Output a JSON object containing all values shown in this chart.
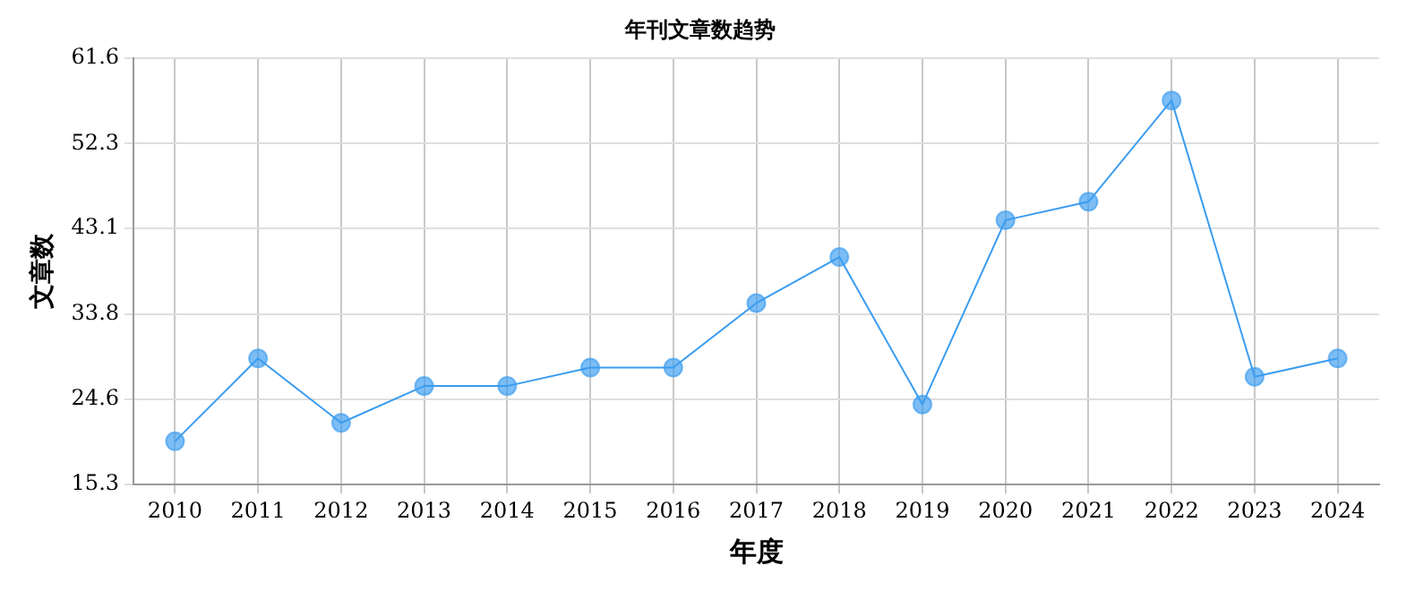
{
  "chart_data": {
    "type": "line",
    "title": "年刊文章数趋势",
    "xlabel": "年度",
    "ylabel": "文章数",
    "categories": [
      "2010",
      "2011",
      "2012",
      "2013",
      "2014",
      "2015",
      "2016",
      "2017",
      "2018",
      "2019",
      "2020",
      "2021",
      "2022",
      "2023",
      "2024"
    ],
    "series": [
      {
        "color": "#3a9cf0",
        "values": [
          20,
          29,
          22,
          26,
          26,
          28,
          28,
          35,
          40,
          24,
          44,
          46,
          57,
          27,
          29
        ]
      }
    ],
    "ylim": [
      15.3,
      61.6
    ],
    "yticks": [
      15.3,
      24.6,
      33.8,
      43.1,
      52.3,
      61.6
    ],
    "grid": true,
    "legend": false,
    "marker": "circle",
    "line_style": "solid"
  }
}
